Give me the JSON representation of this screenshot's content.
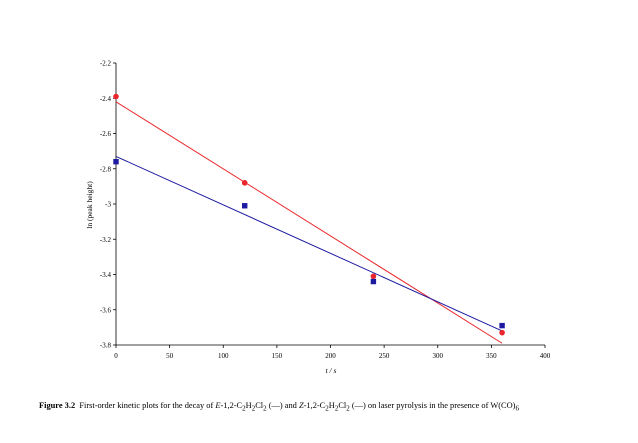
{
  "chart_data": {
    "type": "scatter",
    "xlabel": "t / s",
    "ylabel": "ln (peak height)",
    "xlim": [
      0,
      400
    ],
    "ylim": [
      -3.8,
      -2.2
    ],
    "xticks": [
      "0",
      "50",
      "100",
      "150",
      "200",
      "250",
      "300",
      "350",
      "400"
    ],
    "yticks": [
      "-2.2",
      "-2.4",
      "-2.6",
      "-2.8",
      "-3",
      "-3.2",
      "-3.4",
      "-3.6",
      "-3.8"
    ],
    "grid": false,
    "series": [
      {
        "color": "#e8262b",
        "marker": "circle",
        "x": [
          0,
          120,
          240,
          360
        ],
        "y": [
          -2.39,
          -2.88,
          -3.41,
          -3.73
        ],
        "fit": {
          "x": [
            0,
            360
          ],
          "y": [
            -2.42,
            -3.79
          ]
        }
      },
      {
        "color": "#1d1aa0",
        "marker": "square",
        "x": [
          0,
          120,
          240,
          360
        ],
        "y": [
          -2.76,
          -3.01,
          -3.44,
          -3.69
        ],
        "fit": {
          "x": [
            0,
            360
          ],
          "y": [
            -2.73,
            -3.72
          ]
        }
      }
    ]
  },
  "caption": {
    "label": "Figure 3.2",
    "t1": "First-order kinetic plots for the decay of ",
    "e": "E",
    "t2": "-1,2-C",
    "s1": "2",
    "t3": "H",
    "s2": "2",
    "t4": "Cl",
    "s3": "2",
    "t5": " (—) and ",
    "z": "Z",
    "t6": "-1,2-C",
    "s4": "2",
    "t7": "H",
    "s5": "2",
    "t8": "Cl",
    "s6": "2",
    "t9": " (—) on laser pyrolysis in the presence of W(CO)",
    "s7": "6"
  }
}
